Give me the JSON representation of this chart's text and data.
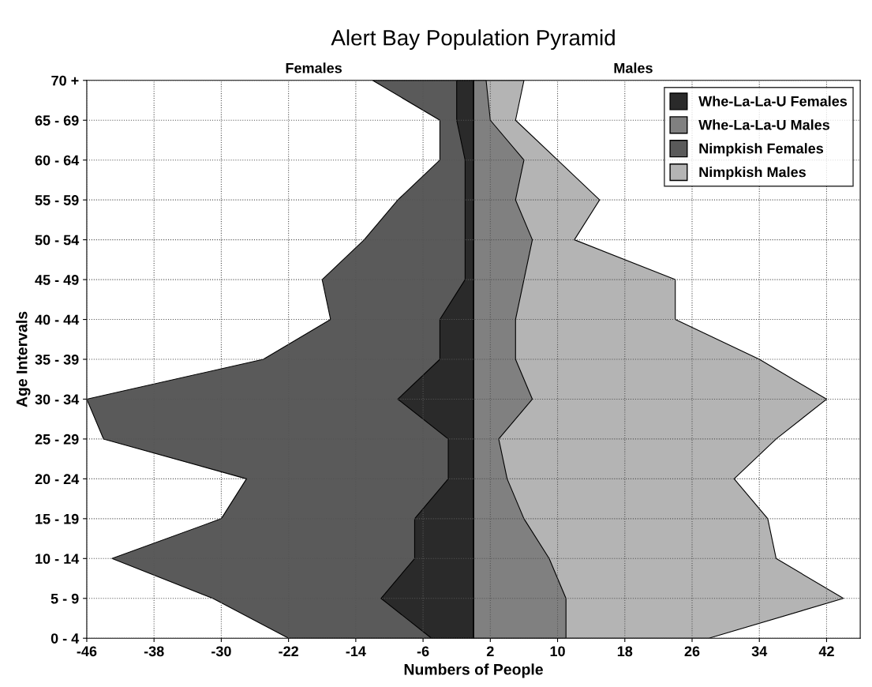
{
  "chart_data": {
    "type": "area",
    "orientation": "horizontal",
    "title": "Alert Bay Population Pyramid",
    "xlabel": "Numbers of People",
    "ylabel": "Age Intervals",
    "annotations": [
      "Females",
      "Males"
    ],
    "categories": [
      "70 +",
      "65 - 69",
      "60 - 64",
      "55 - 59",
      "50 - 54",
      "45 - 49",
      "40 - 44",
      "35 - 39",
      "30 - 34",
      "25 - 29",
      "20 - 24",
      "15 - 19",
      "10 - 14",
      "5 - 9",
      "0 - 4"
    ],
    "series": [
      {
        "name": "Whe-La-La-U Females",
        "color": "#2a2a2a",
        "values": [
          -2,
          -2,
          -1,
          -1,
          -1,
          -1,
          -4,
          -4,
          -9,
          -3,
          -3,
          -7,
          -7,
          -11,
          -5
        ]
      },
      {
        "name": "Whe-La-La-U Males",
        "color": "#808080",
        "values": [
          1.5,
          2,
          6,
          5,
          7,
          6,
          5,
          5,
          7,
          3,
          4,
          6,
          9,
          11,
          11
        ]
      },
      {
        "name": "Nimpkish Females",
        "color": "#5a5a5a",
        "values": [
          -12,
          -4,
          -4,
          -9,
          -13,
          -18,
          -17,
          -25,
          -46,
          -44,
          -27,
          -30,
          -43,
          -31,
          -22
        ]
      },
      {
        "name": "Nimpkish Males",
        "color": "#b4b4b4",
        "values": [
          6,
          5,
          10,
          15,
          12,
          24,
          24,
          34,
          42,
          36,
          31,
          35,
          36,
          44,
          28
        ]
      }
    ],
    "xlim": [
      -46,
      46
    ],
    "xticks": [
      -46,
      -38,
      -30,
      -22,
      -14,
      -6,
      2,
      10,
      18,
      26,
      34,
      42
    ],
    "grid": true,
    "legend": "top right"
  }
}
